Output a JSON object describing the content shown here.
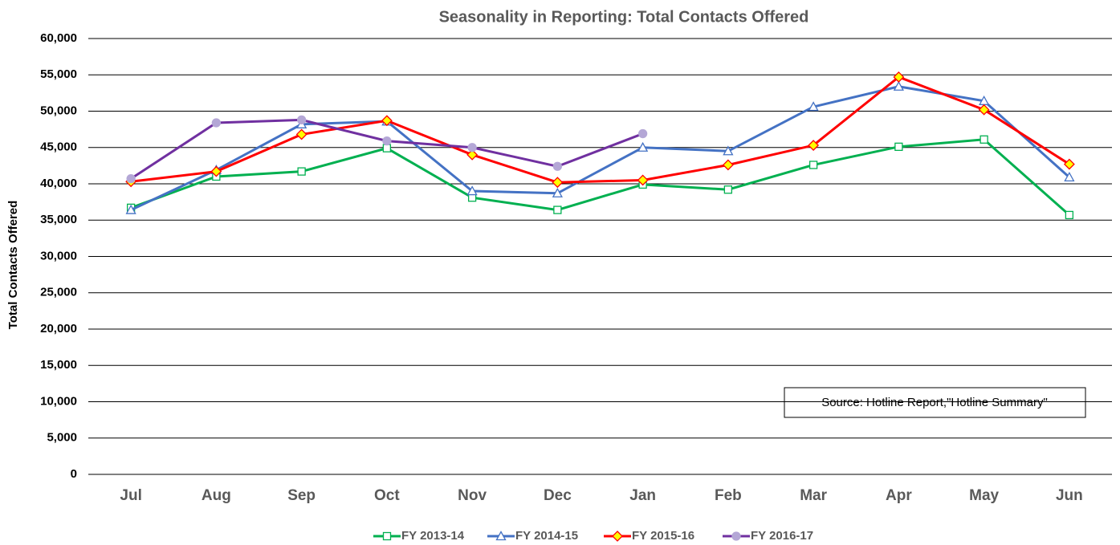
{
  "chart_data": {
    "type": "line",
    "title": "Seasonality in Reporting: Total Contacts Offered",
    "y_label": "Total Contacts Offered",
    "annotation": "Source: Hotline Report,\"Hotline Summary\"",
    "categories": [
      "Jul",
      "Aug",
      "Sep",
      "Oct",
      "Nov",
      "Dec",
      "Jan",
      "Feb",
      "Mar",
      "Apr",
      "May",
      "Jun"
    ],
    "series": [
      {
        "name": "FY 2013-14",
        "color": "#00b050",
        "marker": "square",
        "marker_color": "#ffffff",
        "values": [
          36700,
          41000,
          41700,
          44900,
          38100,
          36400,
          39900,
          39200,
          42600,
          45100,
          46100,
          35700
        ]
      },
      {
        "name": "FY 2014-15",
        "color": "#4472c4",
        "marker": "triangle",
        "marker_color": "#ffffff",
        "values": [
          36400,
          41900,
          48200,
          48600,
          39000,
          38700,
          45000,
          44500,
          50600,
          53400,
          51400,
          40900
        ]
      },
      {
        "name": "FY 2015-16",
        "color": "#ff0000",
        "marker": "diamond",
        "marker_color": "#ffff00",
        "values": [
          40300,
          41700,
          46800,
          48700,
          44000,
          40200,
          40500,
          42600,
          45300,
          54700,
          50200,
          42700
        ]
      },
      {
        "name": "FY 2016-17",
        "color": "#7030a0",
        "marker": "circle",
        "marker_color": "#b4a7d6",
        "values": [
          40700,
          48400,
          48800,
          45900,
          45000,
          42400,
          46900,
          null,
          null,
          null,
          null,
          null
        ]
      }
    ],
    "ylim": [
      0,
      60000
    ],
    "yticks": [
      0,
      {
        "value": 5000,
        "label": "5,000"
      },
      {
        "value": 10000,
        "label": "10,000"
      },
      {
        "value": 15000,
        "label": "15,000"
      },
      {
        "value": 20000,
        "label": "20,000"
      },
      {
        "value": 25000,
        "label": "25,000"
      },
      {
        "value": 30000,
        "label": "30,000"
      },
      {
        "value": 35000,
        "label": "35,000"
      },
      {
        "value": 40000,
        "label": "40,000"
      },
      {
        "value": 45000,
        "label": "45,000"
      },
      {
        "value": 50000,
        "label": "50,000"
      },
      {
        "value": 55000,
        "label": "55,000"
      },
      {
        "value": 60000,
        "label": "60,000"
      }
    ],
    "grid": true
  }
}
